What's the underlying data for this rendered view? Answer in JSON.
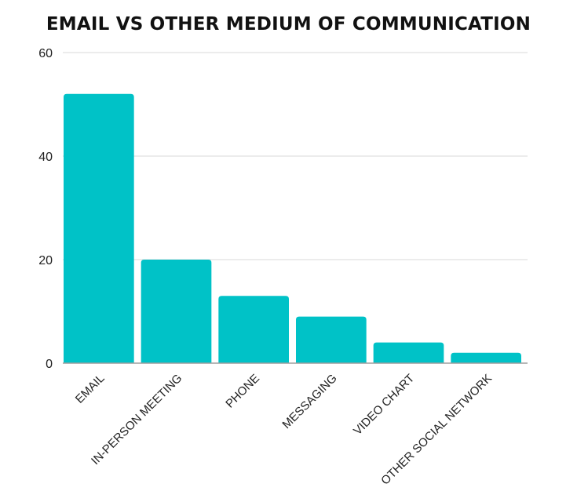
{
  "chart_data": {
    "type": "bar",
    "title": "EMAIL VS OTHER MEDIUM OF COMMUNICATION",
    "xlabel": "",
    "ylabel": "",
    "categories": [
      "EMAIL",
      "IN-PERSON MEETING",
      "PHONE",
      "MESSAGING",
      "VIDEO CHART",
      "OTHER SOCIAL NETWORK"
    ],
    "values": [
      52,
      20,
      13,
      9,
      4,
      2
    ],
    "ylim": [
      0,
      60
    ],
    "yticks": [
      "0",
      "20",
      "40",
      "60"
    ],
    "grid": true,
    "legend": "none",
    "bar_color": "#00c2c7",
    "grid_color": "#d9d9d9",
    "axis_color": "#9e9e9e"
  }
}
